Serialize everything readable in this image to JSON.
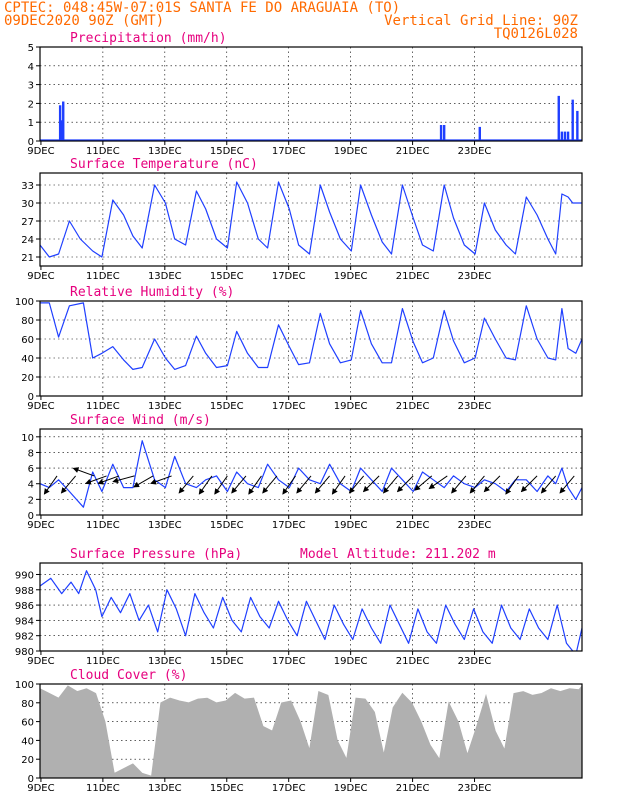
{
  "header": {
    "line1": "CPTEC:   048:45W-07:01S  SANTA FE DO ARAGUAIA (TO)",
    "line2_left": "09DEC2020 90Z (GMT)",
    "line2_right": "Vertical Grid Line: 90Z",
    "line3_right": "TQ0126L028"
  },
  "colors": {
    "series": "#1f3fff",
    "cloud": "#b0b0b0",
    "header": "#ff6a00",
    "title": "#e6007e"
  },
  "chart_data": [
    {
      "type": "bar",
      "title": "Precipitation (mm/h)",
      "xlabels": [
        "9DEC",
        "11DEC",
        "13DEC",
        "15DEC",
        "17DEC",
        "19DEC",
        "21DEC",
        "23DEC"
      ],
      "ylim": [
        0,
        5
      ],
      "yticks": [
        0,
        1,
        2,
        3,
        4,
        5
      ],
      "grid": true,
      "bars": [
        {
          "x": 0.65,
          "y": 1.9
        },
        {
          "x": 0.75,
          "y": 2.1
        },
        {
          "x": 0.7,
          "y": 1.1
        },
        {
          "x": 12.95,
          "y": 0.85
        },
        {
          "x": 13.05,
          "y": 0.85
        },
        {
          "x": 14.2,
          "y": 0.75
        },
        {
          "x": 16.75,
          "y": 2.4
        },
        {
          "x": 16.85,
          "y": 0.5
        },
        {
          "x": 16.95,
          "y": 0.5
        },
        {
          "x": 17.05,
          "y": 0.5
        },
        {
          "x": 17.2,
          "y": 2.2
        },
        {
          "x": 17.35,
          "y": 1.6
        }
      ]
    },
    {
      "type": "line",
      "title": "Surface Temperature (nC)",
      "xlabels": [
        "9DEC",
        "11DEC",
        "13DEC",
        "15DEC",
        "17DEC",
        "19DEC",
        "21DEC",
        "23DEC"
      ],
      "ylim": [
        19.5,
        35
      ],
      "yticks": [
        21,
        24,
        27,
        30,
        33
      ],
      "grid": true,
      "x": [
        0,
        0.3,
        0.6,
        0.95,
        1.3,
        1.7,
        2.0,
        2.35,
        2.7,
        3.0,
        3.3,
        3.7,
        4.05,
        4.35,
        4.7,
        5.05,
        5.35,
        5.7,
        6.05,
        6.35,
        6.7,
        7.05,
        7.35,
        7.7,
        8.05,
        8.35,
        8.7,
        9.05,
        9.35,
        9.7,
        10.05,
        10.35,
        10.7,
        11.05,
        11.35,
        11.7,
        12.05,
        12.35,
        12.7,
        13.05,
        13.35,
        13.7,
        14.05,
        14.35,
        14.7,
        15.05,
        15.35,
        15.7,
        16.05,
        16.4,
        16.65,
        16.85,
        17.05,
        17.2,
        17.5
      ],
      "y": [
        23,
        21,
        21.5,
        27,
        24,
        22,
        21,
        30.5,
        28,
        24.5,
        22.5,
        33,
        30,
        24,
        23,
        32,
        29,
        24,
        22.5,
        33.5,
        30,
        24,
        22.5,
        33.5,
        29,
        23,
        21.5,
        33,
        28.5,
        24,
        22,
        33,
        28,
        23.5,
        21.5,
        33,
        27.5,
        23,
        22,
        33,
        27.5,
        23,
        21.5,
        30,
        25.5,
        23,
        21.5,
        31,
        28,
        24,
        21.5,
        31.5,
        31,
        30,
        30
      ]
    },
    {
      "type": "line",
      "title": "Relative Humidity (%)",
      "xlabels": [
        "9DEC",
        "11DEC",
        "13DEC",
        "15DEC",
        "17DEC",
        "19DEC",
        "21DEC",
        "23DEC"
      ],
      "ylim": [
        0,
        100
      ],
      "yticks": [
        0,
        20,
        40,
        60,
        80,
        100
      ],
      "grid": true,
      "x": [
        0,
        0.3,
        0.6,
        0.95,
        1.4,
        1.7,
        2.0,
        2.35,
        2.7,
        3.0,
        3.3,
        3.7,
        4.05,
        4.35,
        4.7,
        5.05,
        5.35,
        5.7,
        6.05,
        6.35,
        6.7,
        7.05,
        7.35,
        7.7,
        8.05,
        8.35,
        8.7,
        9.05,
        9.35,
        9.7,
        10.05,
        10.35,
        10.7,
        11.05,
        11.35,
        11.7,
        12.05,
        12.35,
        12.7,
        13.05,
        13.35,
        13.7,
        14.05,
        14.35,
        14.7,
        15.05,
        15.35,
        15.7,
        16.05,
        16.4,
        16.65,
        16.85,
        17.05,
        17.3,
        17.5
      ],
      "y": [
        98,
        98,
        62,
        95,
        98,
        40,
        45,
        52,
        38,
        28,
        30,
        60,
        40,
        28,
        32,
        63,
        45,
        30,
        32,
        68,
        45,
        30,
        30,
        75,
        52,
        33,
        35,
        87,
        55,
        35,
        38,
        90,
        55,
        35,
        35,
        92,
        57,
        35,
        40,
        90,
        58,
        35,
        40,
        82,
        60,
        40,
        38,
        95,
        60,
        40,
        38,
        92,
        50,
        45,
        60
      ]
    },
    {
      "type": "line",
      "title": "Surface Wind (m/s)",
      "xlabels": [
        "9DEC",
        "11DEC",
        "13DEC",
        "15DEC",
        "17DEC",
        "19DEC",
        "21DEC",
        "23DEC"
      ],
      "ylim": [
        0,
        11
      ],
      "yticks": [
        0,
        2,
        4,
        6,
        8,
        10
      ],
      "grid": true,
      "x": [
        0,
        0.3,
        0.6,
        0.95,
        1.4,
        1.7,
        2.0,
        2.35,
        2.7,
        3.0,
        3.3,
        3.7,
        4.05,
        4.35,
        4.7,
        5.05,
        5.35,
        5.7,
        6.05,
        6.35,
        6.7,
        7.05,
        7.35,
        7.7,
        8.05,
        8.35,
        8.7,
        9.05,
        9.35,
        9.7,
        10.05,
        10.35,
        10.7,
        11.05,
        11.35,
        11.7,
        12.05,
        12.35,
        12.7,
        13.05,
        13.35,
        13.7,
        14.05,
        14.35,
        14.7,
        15.05,
        15.35,
        15.7,
        16.05,
        16.4,
        16.65,
        16.85,
        17.05,
        17.3,
        17.5
      ],
      "y": [
        4,
        3.5,
        4.5,
        3,
        1,
        5.5,
        3,
        6.5,
        3.5,
        3.5,
        9.5,
        4.5,
        3.5,
        7.5,
        4,
        3.5,
        4.5,
        5,
        3,
        5.5,
        4,
        3.5,
        6.5,
        4.5,
        3.5,
        6,
        4.5,
        4,
        6.5,
        4,
        3,
        6,
        4.5,
        3,
        6,
        4.5,
        3,
        5.5,
        4.5,
        3.5,
        5,
        4,
        3.5,
        4.5,
        4,
        3,
        4.5,
        4.5,
        3,
        5,
        4,
        6,
        3.5,
        2,
        3.5
      ],
      "arrows": [
        {
          "x": 0.55,
          "angle": 235
        },
        {
          "x": 1.15,
          "angle": 230
        },
        {
          "x": 1.75,
          "angle": 160
        },
        {
          "x": 2.15,
          "angle": 200
        },
        {
          "x": 2.55,
          "angle": 200
        },
        {
          "x": 3.05,
          "angle": 195
        },
        {
          "x": 3.65,
          "angle": 210
        },
        {
          "x": 4.25,
          "angle": 200
        },
        {
          "x": 4.95,
          "angle": 230
        },
        {
          "x": 5.55,
          "angle": 235
        },
        {
          "x": 6.05,
          "angle": 235
        },
        {
          "x": 6.65,
          "angle": 230
        },
        {
          "x": 7.15,
          "angle": 235
        },
        {
          "x": 7.65,
          "angle": 230
        },
        {
          "x": 8.25,
          "angle": 235
        },
        {
          "x": 8.75,
          "angle": 230
        },
        {
          "x": 9.35,
          "angle": 230
        },
        {
          "x": 9.85,
          "angle": 235
        },
        {
          "x": 10.45,
          "angle": 230
        },
        {
          "x": 10.95,
          "angle": 225
        },
        {
          "x": 11.55,
          "angle": 230
        },
        {
          "x": 12.05,
          "angle": 225
        },
        {
          "x": 12.65,
          "angle": 220
        },
        {
          "x": 13.15,
          "angle": 215
        },
        {
          "x": 13.75,
          "angle": 230
        },
        {
          "x": 14.35,
          "angle": 230
        },
        {
          "x": 14.85,
          "angle": 225
        },
        {
          "x": 15.45,
          "angle": 235
        },
        {
          "x": 16.05,
          "angle": 225
        },
        {
          "x": 16.65,
          "angle": 230
        },
        {
          "x": 17.25,
          "angle": 230
        }
      ]
    },
    {
      "type": "line",
      "title": "Surface Pressure (hPa)",
      "subtitle": "Model Altitude: 211.202 m",
      "xlabels": [
        "9DEC",
        "11DEC",
        "13DEC",
        "15DEC",
        "17DEC",
        "19DEC",
        "21DEC",
        "23DEC"
      ],
      "ylim": [
        980,
        991.5
      ],
      "yticks": [
        980,
        982,
        984,
        986,
        988,
        990
      ],
      "grid": true,
      "x": [
        0,
        0.35,
        0.7,
        1.0,
        1.25,
        1.5,
        1.8,
        2.0,
        2.3,
        2.6,
        2.9,
        3.2,
        3.5,
        3.8,
        4.1,
        4.4,
        4.7,
        5.0,
        5.3,
        5.6,
        5.9,
        6.2,
        6.5,
        6.8,
        7.1,
        7.4,
        7.7,
        8.0,
        8.3,
        8.6,
        8.9,
        9.2,
        9.5,
        9.8,
        10.1,
        10.4,
        10.7,
        11.0,
        11.3,
        11.6,
        11.9,
        12.2,
        12.5,
        12.8,
        13.1,
        13.4,
        13.7,
        14.0,
        14.3,
        14.6,
        14.9,
        15.2,
        15.5,
        15.8,
        16.1,
        16.4,
        16.7,
        17.0,
        17.3,
        17.5
      ],
      "y": [
        988.5,
        989.5,
        987.5,
        989,
        987.5,
        990.5,
        988,
        984.5,
        987,
        985,
        987.5,
        984,
        986,
        982.5,
        988,
        985.5,
        982,
        987.5,
        985,
        983,
        987,
        984,
        982.5,
        987,
        984.5,
        983,
        986.5,
        984,
        982,
        986.5,
        984,
        981.5,
        986,
        983.5,
        981.5,
        985.5,
        983,
        981,
        986,
        983.5,
        981,
        985.5,
        982.5,
        981,
        986,
        983.5,
        981.5,
        985.5,
        982.5,
        981,
        986,
        983,
        981.5,
        985.5,
        983,
        981.5,
        986,
        981,
        979.5,
        983
      ]
    },
    {
      "type": "area",
      "title": "Cloud Cover (%)",
      "xlabels": [
        "9DEC",
        "11DEC",
        "13DEC",
        "15DEC",
        "17DEC",
        "19DEC",
        "21DEC",
        "23DEC"
      ],
      "ylim": [
        0,
        100
      ],
      "yticks": [
        0,
        20,
        40,
        60,
        80,
        100
      ],
      "grid": true,
      "x": [
        0,
        0.3,
        0.6,
        0.9,
        1.2,
        1.5,
        1.8,
        2.1,
        2.4,
        2.7,
        3.0,
        3.3,
        3.6,
        3.9,
        4.2,
        4.5,
        4.8,
        5.1,
        5.4,
        5.7,
        6.0,
        6.3,
        6.6,
        6.9,
        7.2,
        7.5,
        7.8,
        8.1,
        8.4,
        8.7,
        9.0,
        9.3,
        9.6,
        9.9,
        10.2,
        10.5,
        10.8,
        11.1,
        11.4,
        11.7,
        12.0,
        12.3,
        12.6,
        12.9,
        13.2,
        13.5,
        13.8,
        14.1,
        14.4,
        14.7,
        15.0,
        15.3,
        15.6,
        15.9,
        16.2,
        16.5,
        16.8,
        17.1,
        17.4,
        17.5
      ],
      "y": [
        95,
        90,
        85,
        98,
        92,
        95,
        90,
        60,
        5,
        10,
        15,
        5,
        2,
        80,
        85,
        82,
        80,
        84,
        85,
        80,
        82,
        90,
        84,
        85,
        55,
        50,
        80,
        82,
        60,
        30,
        92,
        88,
        40,
        20,
        85,
        84,
        70,
        25,
        75,
        90,
        80,
        60,
        35,
        20,
        80,
        60,
        25,
        55,
        88,
        50,
        30,
        90,
        92,
        88,
        90,
        95,
        92,
        95,
        94,
        98
      ]
    }
  ]
}
